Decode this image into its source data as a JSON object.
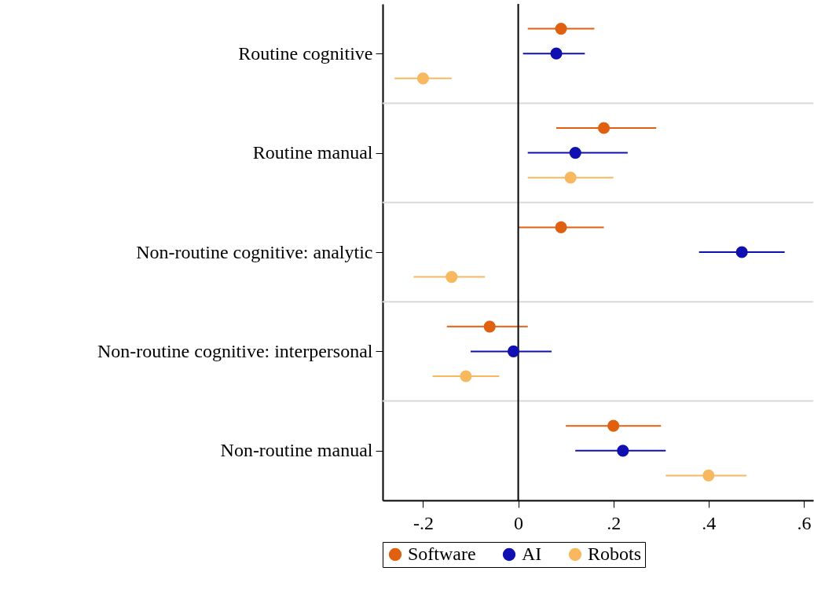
{
  "chart_data": {
    "type": "scatter",
    "orientation": "horizontal",
    "categories": [
      "Routine cognitive",
      "Routine manual",
      "Non-routine cognitive: analytic",
      "Non-routine cognitive: interpersonal",
      "Non-routine manual"
    ],
    "series": [
      {
        "name": "Software",
        "color": "#e06010",
        "values": [
          0.09,
          0.18,
          0.09,
          -0.06,
          0.2
        ],
        "errors": [
          [
            0.02,
            0.16
          ],
          [
            0.08,
            0.29
          ],
          [
            0.0,
            0.18
          ],
          [
            -0.15,
            0.02
          ],
          [
            0.1,
            0.3
          ]
        ]
      },
      {
        "name": "AI",
        "color": "#1010b0",
        "values": [
          0.08,
          0.12,
          0.47,
          -0.01,
          0.22
        ],
        "errors": [
          [
            0.01,
            0.14
          ],
          [
            0.02,
            0.23
          ],
          [
            0.38,
            0.56
          ],
          [
            -0.1,
            0.07
          ],
          [
            0.12,
            0.31
          ]
        ]
      },
      {
        "name": "Robots",
        "color": "#f8b860",
        "values": [
          -0.2,
          0.11,
          -0.14,
          -0.11,
          0.4
        ],
        "errors": [
          [
            -0.26,
            -0.14
          ],
          [
            0.02,
            0.2
          ],
          [
            -0.22,
            -0.07
          ],
          [
            -0.18,
            -0.04
          ],
          [
            0.31,
            0.48
          ]
        ]
      }
    ],
    "xlim": [
      -0.285,
      0.62
    ],
    "xticks": [
      {
        "value": -0.2,
        "label": "-.2"
      },
      0,
      {
        "value": 0.2,
        "label": ".2"
      },
      {
        "value": 0.4,
        "label": ".4"
      },
      {
        "value": 0.6,
        "label": ".6"
      }
    ],
    "ref_lines": [
      {
        "axis": "x",
        "value": 0,
        "color": "#000000"
      }
    ],
    "grid": "y",
    "marker": "circle",
    "legend": "bottom"
  }
}
